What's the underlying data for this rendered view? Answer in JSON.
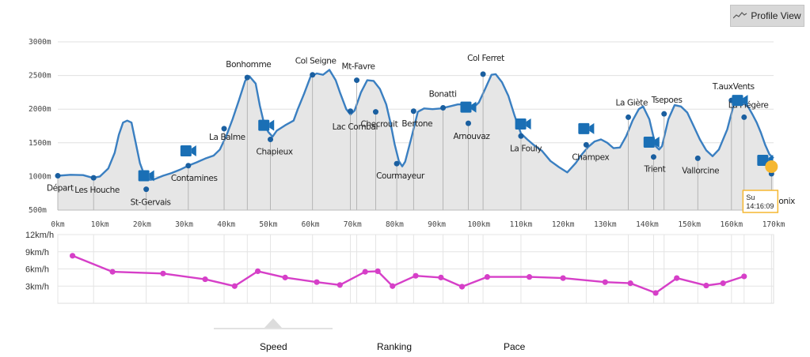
{
  "header": {
    "profile_view_label": "Profile View",
    "profile_view_icon": "line-chart-icon"
  },
  "tabs": [
    {
      "label": "Speed",
      "active": true
    },
    {
      "label": "Ranking",
      "active": false
    },
    {
      "label": "Pace",
      "active": false
    }
  ],
  "colors": {
    "profile_line": "#3a7fc1",
    "profile_fill": "#e6e6e6",
    "speed_line": "#d63fc8",
    "marker": "#1a5fa0",
    "camera": "#1a6fb5",
    "runner": "#f5b731"
  },
  "runner": {
    "label": "Su",
    "time": "14:16:09",
    "km": 169.5
  },
  "chart_data": [
    {
      "type": "area",
      "x_unit": "km",
      "xlim": [
        0,
        170
      ],
      "ylim": [
        500,
        3000
      ],
      "x_ticks": [
        "0km",
        "10km",
        "20km",
        "30km",
        "40km",
        "50km",
        "60km",
        "70km",
        "80km",
        "90km",
        "100km",
        "110km",
        "120km",
        "130km",
        "140km",
        "150km",
        "160km",
        "170km"
      ],
      "y_ticks": [
        "500m",
        "1000m",
        "1500m",
        "2000m",
        "2500m",
        "3000m"
      ],
      "profile": [
        [
          0,
          1010
        ],
        [
          3,
          1025
        ],
        [
          6,
          1020
        ],
        [
          8,
          985
        ],
        [
          8.5,
          980
        ],
        [
          10,
          1000
        ],
        [
          12,
          1120
        ],
        [
          13.5,
          1350
        ],
        [
          14.5,
          1620
        ],
        [
          15.5,
          1800
        ],
        [
          16.5,
          1830
        ],
        [
          17.5,
          1800
        ],
        [
          18.5,
          1500
        ],
        [
          19.5,
          1200
        ],
        [
          20.5,
          1030
        ],
        [
          21,
          990
        ],
        [
          22,
          950
        ],
        [
          23,
          960
        ],
        [
          25,
          1010
        ],
        [
          27,
          1050
        ],
        [
          29,
          1100
        ],
        [
          31,
          1160
        ],
        [
          33,
          1210
        ],
        [
          35,
          1265
        ],
        [
          37,
          1310
        ],
        [
          38.5,
          1400
        ],
        [
          40,
          1600
        ],
        [
          41.5,
          1850
        ],
        [
          43,
          2130
        ],
        [
          44.5,
          2420
        ],
        [
          45.5,
          2490
        ],
        [
          47,
          2380
        ],
        [
          48,
          2050
        ],
        [
          49,
          1780
        ],
        [
          50,
          1660
        ],
        [
          51,
          1590
        ],
        [
          52,
          1680
        ],
        [
          54,
          1760
        ],
        [
          56,
          1830
        ],
        [
          57,
          2000
        ],
        [
          58.5,
          2230
        ],
        [
          60,
          2480
        ],
        [
          61.5,
          2530
        ],
        [
          63,
          2510
        ],
        [
          64.5,
          2585
        ],
        [
          66,
          2430
        ],
        [
          67,
          2250
        ],
        [
          68.5,
          2000
        ],
        [
          69.5,
          1920
        ],
        [
          70.5,
          1980
        ],
        [
          72,
          2250
        ],
        [
          73.5,
          2430
        ],
        [
          75,
          2420
        ],
        [
          76.5,
          2300
        ],
        [
          78,
          2070
        ],
        [
          79,
          1800
        ],
        [
          80,
          1480
        ],
        [
          81,
          1230
        ],
        [
          81.8,
          1150
        ],
        [
          82.5,
          1220
        ],
        [
          84,
          1580
        ],
        [
          85.5,
          1960
        ],
        [
          87,
          2010
        ],
        [
          89,
          2000
        ],
        [
          91,
          2010
        ],
        [
          93,
          2040
        ],
        [
          95,
          2070
        ],
        [
          97,
          2070
        ],
        [
          98.5,
          2010
        ],
        [
          100,
          2100
        ],
        [
          101.5,
          2300
        ],
        [
          103,
          2510
        ],
        [
          104,
          2520
        ],
        [
          105.5,
          2400
        ],
        [
          107,
          2200
        ],
        [
          108.5,
          1900
        ],
        [
          110,
          1640
        ],
        [
          111.5,
          1550
        ],
        [
          113,
          1470
        ],
        [
          115,
          1380
        ],
        [
          117,
          1230
        ],
        [
          119,
          1140
        ],
        [
          121,
          1060
        ],
        [
          123,
          1200
        ],
        [
          124.5,
          1330
        ],
        [
          126,
          1440
        ],
        [
          127.5,
          1520
        ],
        [
          129,
          1550
        ],
        [
          130.5,
          1500
        ],
        [
          132,
          1420
        ],
        [
          133.5,
          1430
        ],
        [
          135,
          1600
        ],
        [
          136.5,
          1830
        ],
        [
          138,
          2000
        ],
        [
          139,
          2040
        ],
        [
          140.5,
          1850
        ],
        [
          142,
          1450
        ],
        [
          142.8,
          1400
        ],
        [
          143.5,
          1450
        ],
        [
          145,
          1850
        ],
        [
          146.5,
          2060
        ],
        [
          148,
          2040
        ],
        [
          149.5,
          1950
        ],
        [
          151,
          1750
        ],
        [
          152.5,
          1550
        ],
        [
          154,
          1390
        ],
        [
          155.5,
          1300
        ],
        [
          157,
          1400
        ],
        [
          159,
          1700
        ],
        [
          160.5,
          2060
        ],
        [
          162,
          2130
        ],
        [
          164,
          2030
        ],
        [
          165,
          1920
        ],
        [
          166,
          1800
        ],
        [
          167,
          1650
        ],
        [
          168,
          1470
        ],
        [
          169,
          1330
        ],
        [
          170,
          1270
        ]
      ],
      "waypoints": [
        {
          "name": "Départ",
          "km": 0,
          "alt": 1010
        },
        {
          "name": "Les Houche",
          "km": 8.5,
          "alt": 980
        },
        {
          "name": "St-Gervais",
          "km": 21,
          "alt": 810
        },
        {
          "name": "Contamines",
          "km": 31,
          "alt": 1160
        },
        {
          "name": "La Balme",
          "km": 39.5,
          "alt": 1710
        },
        {
          "name": "Bonhomme",
          "km": 45,
          "alt": 2470
        },
        {
          "name": "Chapieux",
          "km": 50.5,
          "alt": 1550
        },
        {
          "name": "Col Seigne",
          "km": 60.5,
          "alt": 2510
        },
        {
          "name": "Lac Combal",
          "km": 69.5,
          "alt": 1970
        },
        {
          "name": "Mt-Favre",
          "km": 71,
          "alt": 2430
        },
        {
          "name": "Checrouit",
          "km": 75.5,
          "alt": 1960
        },
        {
          "name": "Courmayeur",
          "km": 80.5,
          "alt": 1190
        },
        {
          "name": "Bertone",
          "km": 84.5,
          "alt": 1970
        },
        {
          "name": "Bonatti",
          "km": 91.5,
          "alt": 2020
        },
        {
          "name": "Arnouvaz",
          "km": 97.5,
          "alt": 1790
        },
        {
          "name": "Col Ferret",
          "km": 101,
          "alt": 2520
        },
        {
          "name": "La Fouly",
          "km": 110,
          "alt": 1600
        },
        {
          "name": "Champex",
          "km": 125.5,
          "alt": 1470
        },
        {
          "name": "La Giète",
          "km": 135.5,
          "alt": 1880
        },
        {
          "name": "Trient",
          "km": 141.5,
          "alt": 1290
        },
        {
          "name": "Tsepoes",
          "km": 144,
          "alt": 1930
        },
        {
          "name": "Vallorcine",
          "km": 152,
          "alt": 1270
        },
        {
          "name": "T.auxVents",
          "km": 160,
          "alt": 2130
        },
        {
          "name": "La Flégère",
          "km": 163,
          "alt": 1880
        },
        {
          "name": "Chamonix",
          "km": 169.5,
          "alt": 1040
        }
      ],
      "cameras": [
        [
          21,
          1010
        ],
        [
          31,
          1380
        ],
        [
          49.5,
          1760
        ],
        [
          97.5,
          2030
        ],
        [
          110.5,
          1780
        ],
        [
          125.5,
          1710
        ],
        [
          141,
          1510
        ],
        [
          162,
          2130
        ],
        [
          168,
          1240
        ]
      ]
    },
    {
      "type": "line",
      "x_unit": "km",
      "xlim": [
        0,
        170
      ],
      "ylim": [
        0,
        12
      ],
      "y_ticks": [
        "12km/h",
        "9km/h",
        "6km/h",
        "3km/h"
      ],
      "series": [
        {
          "values": [
            [
              3.5,
              8.3
            ],
            [
              13,
              5.5
            ],
            [
              25,
              5.2
            ],
            [
              35,
              4.2
            ],
            [
              42,
              3.0
            ],
            [
              47.5,
              5.6
            ],
            [
              54,
              4.5
            ],
            [
              61.5,
              3.7
            ],
            [
              67,
              3.2
            ],
            [
              73,
              5.5
            ],
            [
              76,
              5.6
            ],
            [
              79.5,
              3.0
            ],
            [
              85,
              4.8
            ],
            [
              91,
              4.5
            ],
            [
              96,
              2.9
            ],
            [
              102,
              4.6
            ],
            [
              112,
              4.6
            ],
            [
              120,
              4.4
            ],
            [
              130,
              3.7
            ],
            [
              136,
              3.5
            ],
            [
              142,
              1.8
            ],
            [
              147,
              4.4
            ],
            [
              154,
              3.1
            ],
            [
              158,
              3.5
            ],
            [
              163,
              4.7
            ]
          ]
        }
      ]
    }
  ]
}
